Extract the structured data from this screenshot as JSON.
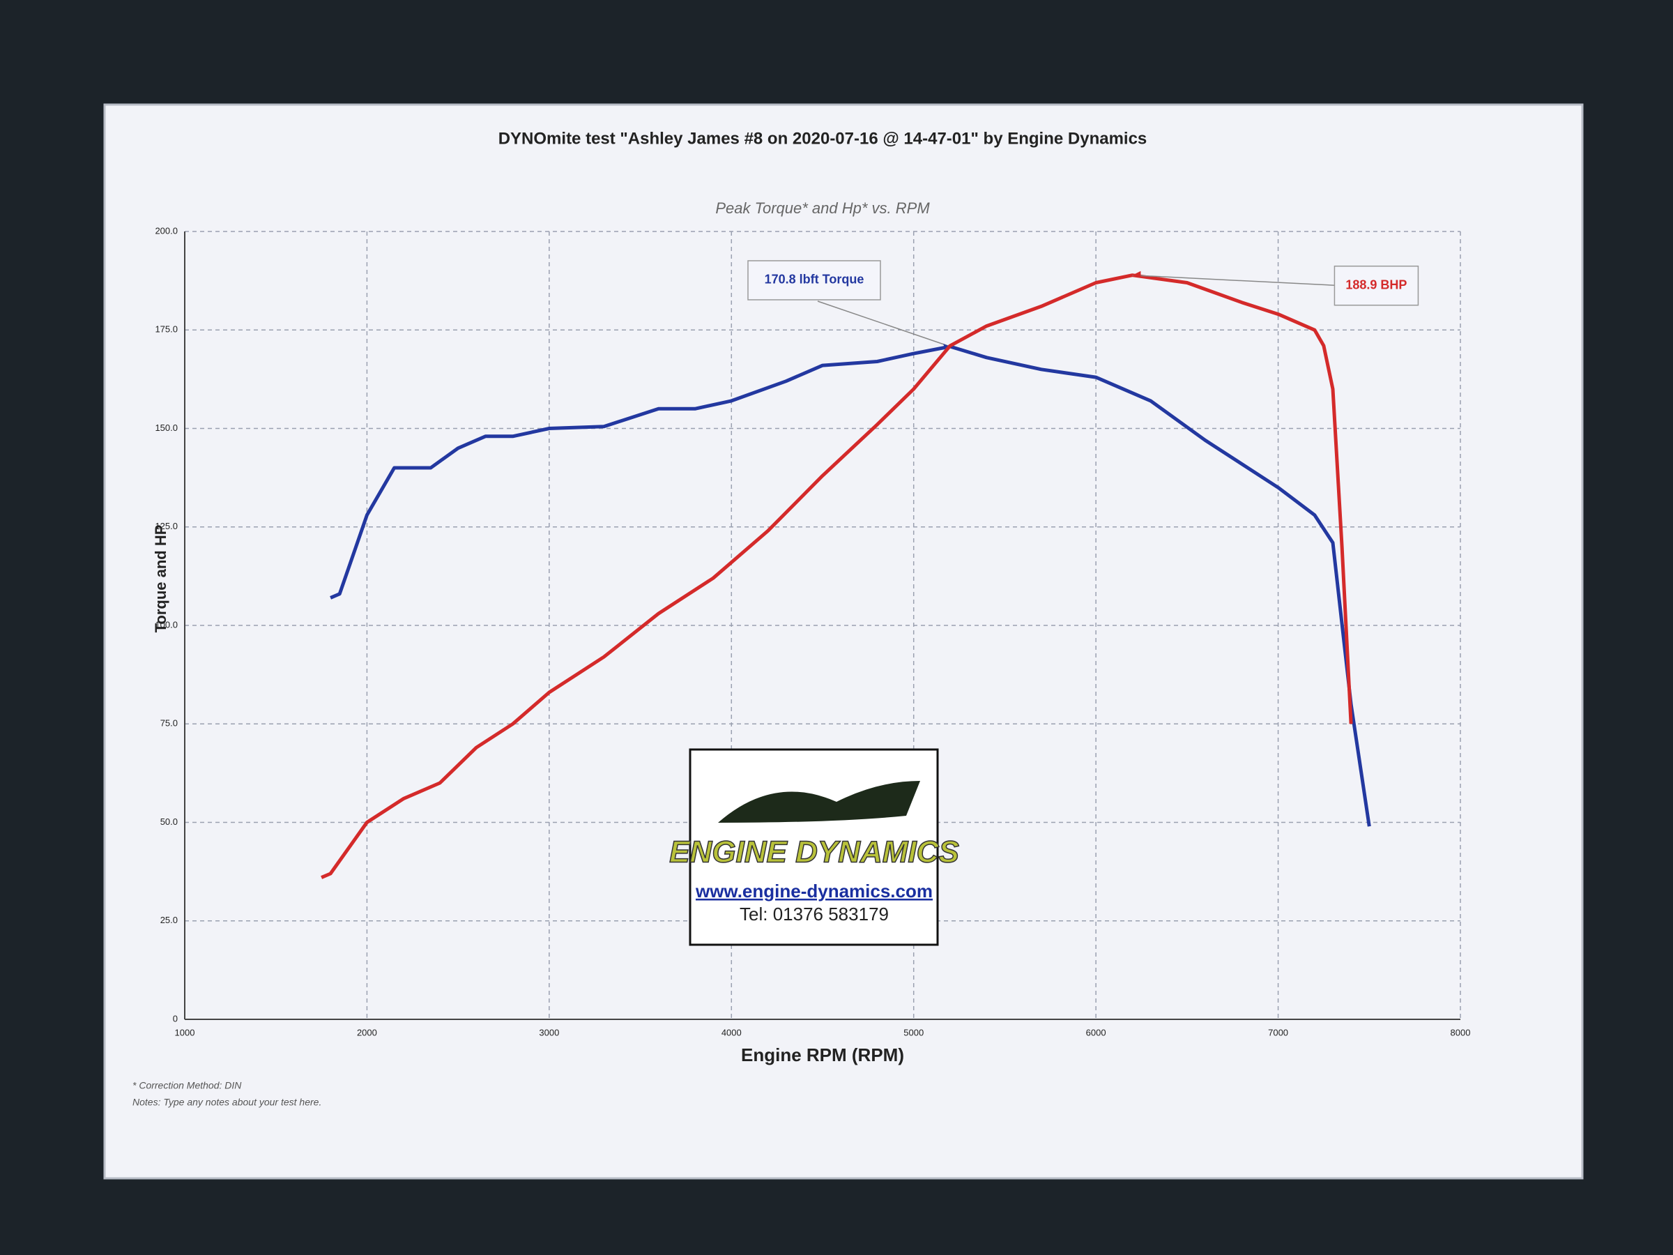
{
  "chart_data": {
    "type": "line",
    "title": "DYNOmite test \"Ashley James #8 on 2020-07-16 @ 14-47-01\" by Engine Dynamics",
    "subtitle": "Peak Torque* and Hp* vs. RPM",
    "x_label": "Engine RPM (RPM)",
    "y_label": "Torque and HP",
    "xlim": [
      1000,
      8000
    ],
    "xticks": [
      1000,
      2000,
      3000,
      4000,
      5000,
      6000,
      7000,
      8000
    ],
    "ylim": [
      0,
      200
    ],
    "yticks": [
      0,
      {
        "value": 25,
        "label": "25.0"
      },
      {
        "value": 50,
        "label": "50.0"
      },
      {
        "value": 75,
        "label": "75.0"
      },
      {
        "value": 100,
        "label": "100.0"
      },
      {
        "value": 125,
        "label": "125.0"
      },
      {
        "value": 150,
        "label": "150.0"
      },
      {
        "value": 175,
        "label": "175.0"
      },
      {
        "value": 200,
        "label": "200.0"
      }
    ],
    "grid": true,
    "series": [
      {
        "color": "#2338a0",
        "annotation": "170.8 lbft Torque",
        "x": [
          1800,
          1850,
          2000,
          2150,
          2350,
          2500,
          2650,
          2800,
          3000,
          3300,
          3600,
          3800,
          4000,
          4300,
          4500,
          4800,
          5000,
          5200,
          5400,
          5700,
          6000,
          6300,
          6600,
          7000,
          7200,
          7300,
          7400,
          7500
        ],
        "values": [
          107,
          108,
          128,
          140,
          140,
          145,
          148,
          148,
          150,
          150.5,
          155,
          155,
          157,
          162,
          166,
          167,
          169,
          170.8,
          168,
          165,
          163,
          157,
          147,
          135,
          128,
          121,
          80,
          49
        ]
      },
      {
        "color": "#d42a2a",
        "annotation": "188.9 BHP",
        "x": [
          1750,
          1800,
          2000,
          2200,
          2400,
          2600,
          2800,
          3000,
          3300,
          3600,
          3900,
          4200,
          4500,
          4800,
          5000,
          5200,
          5400,
          5700,
          6000,
          6200,
          6500,
          6800,
          7000,
          7200,
          7250,
          7300,
          7350,
          7400
        ],
        "values": [
          36,
          37,
          50,
          56,
          60,
          69,
          75,
          83,
          92,
          103,
          112,
          124,
          138,
          151,
          160,
          171,
          176,
          181,
          187,
          188.9,
          187,
          182,
          179,
          175,
          171,
          160,
          120,
          75
        ]
      }
    ],
    "notes": [
      "* Correction Method: DIN",
      "Notes: Type any notes about your test here."
    ]
  },
  "logo": {
    "brand": "ENGINE DYNAMICS",
    "url": "www.engine-dynamics.com",
    "phone": "Tel: 01376 583179"
  }
}
